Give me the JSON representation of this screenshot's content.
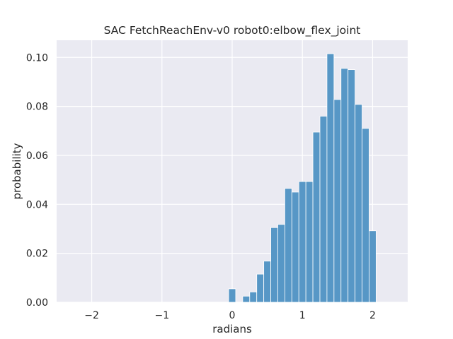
{
  "chart_data": {
    "type": "bar",
    "title": "SAC FetchReachEnv-v0 robot0:elbow_flex_joint",
    "xlabel": "radians",
    "ylabel": "probability",
    "xlim": [
      -2.5,
      2.5
    ],
    "ylim": [
      0,
      0.107
    ],
    "xticks": [
      -2,
      -1,
      0,
      1,
      2
    ],
    "xtick_labels": [
      "−2",
      "−1",
      "0",
      "1",
      "2"
    ],
    "yticks": [
      0.0,
      0.02,
      0.04,
      0.06,
      0.08,
      0.1
    ],
    "ytick_labels": [
      "0.00",
      "0.02",
      "0.04",
      "0.06",
      "0.08",
      "0.10"
    ],
    "grid": true,
    "bin_width": 0.1,
    "bins": [
      {
        "x0": -0.05,
        "value": 0.0055
      },
      {
        "x0": 0.15,
        "value": 0.0025
      },
      {
        "x0": 0.25,
        "value": 0.0042
      },
      {
        "x0": 0.35,
        "value": 0.0115
      },
      {
        "x0": 0.45,
        "value": 0.0168
      },
      {
        "x0": 0.55,
        "value": 0.0305
      },
      {
        "x0": 0.65,
        "value": 0.0318
      },
      {
        "x0": 0.75,
        "value": 0.0465
      },
      {
        "x0": 0.85,
        "value": 0.045
      },
      {
        "x0": 0.95,
        "value": 0.0493
      },
      {
        "x0": 1.05,
        "value": 0.0493
      },
      {
        "x0": 1.15,
        "value": 0.0695
      },
      {
        "x0": 1.25,
        "value": 0.076
      },
      {
        "x0": 1.35,
        "value": 0.1015
      },
      {
        "x0": 1.45,
        "value": 0.0828
      },
      {
        "x0": 1.55,
        "value": 0.0955
      },
      {
        "x0": 1.65,
        "value": 0.095
      },
      {
        "x0": 1.75,
        "value": 0.0808
      },
      {
        "x0": 1.85,
        "value": 0.071
      },
      {
        "x0": 1.95,
        "value": 0.0292
      }
    ],
    "colors": {
      "bar_fill": "#5797c6",
      "bar_edge": "#ffffff",
      "plot_background": "#eaeaf2",
      "grid": "#ffffff",
      "text": "#262626"
    }
  }
}
